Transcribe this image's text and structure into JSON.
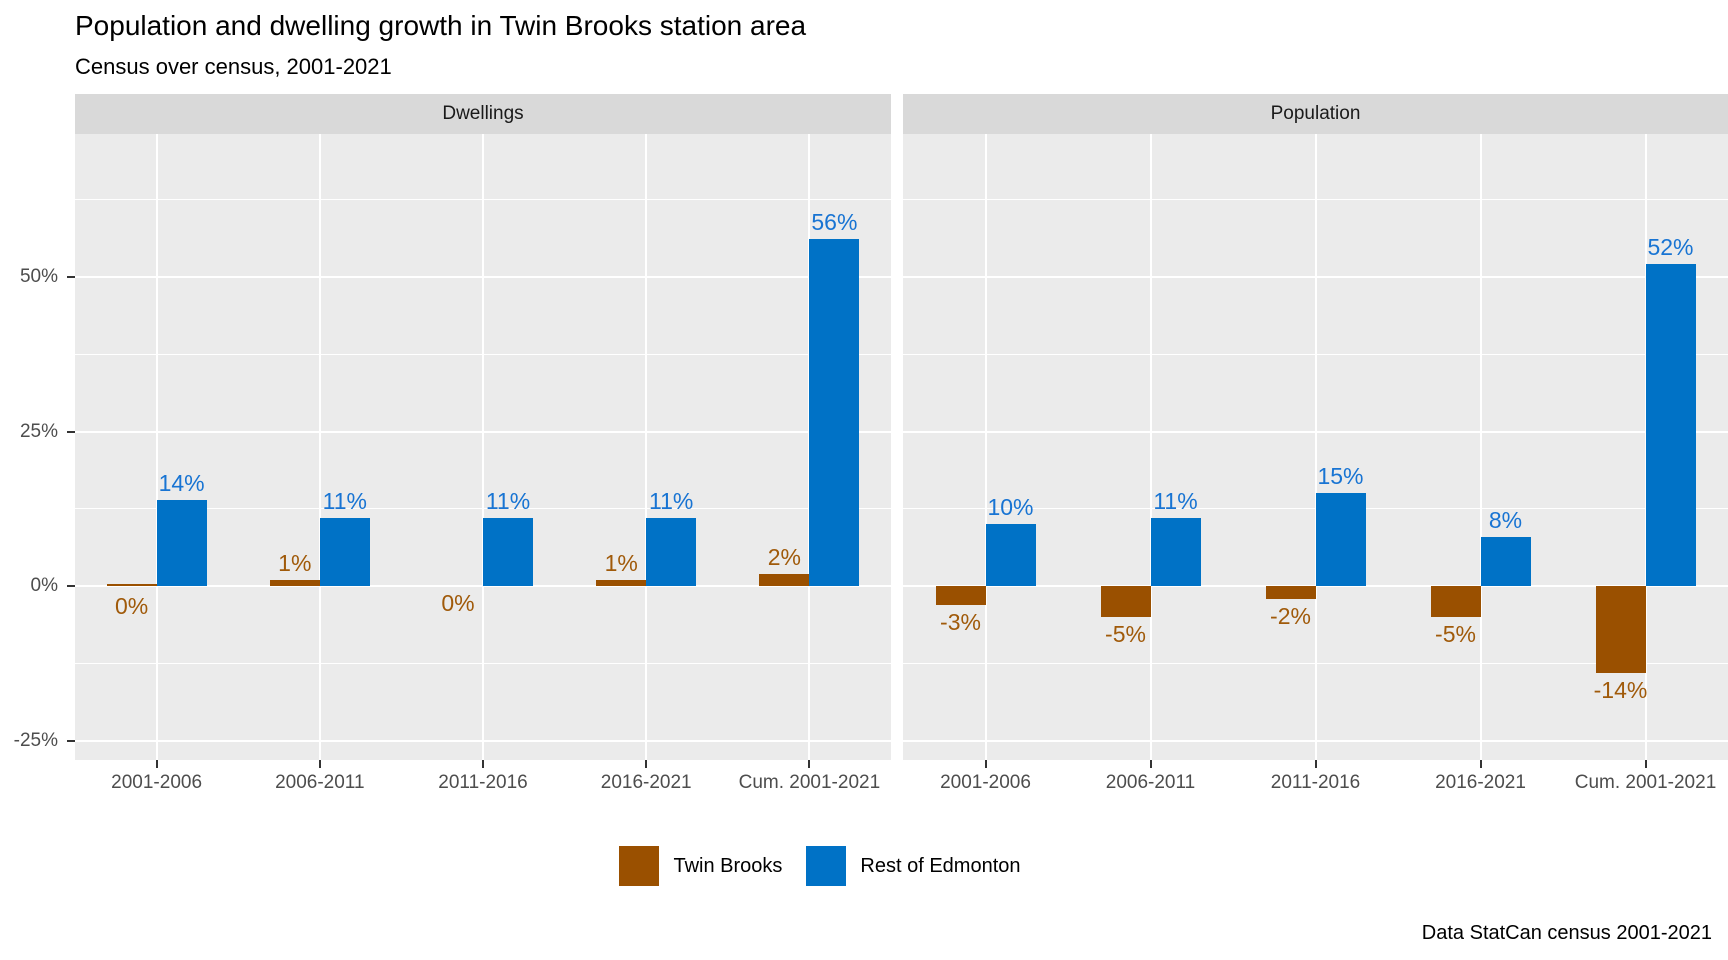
{
  "chart_data": {
    "type": "bar",
    "title": "Population and dwelling growth in Twin Brooks station area",
    "subtitle": "Census over census, 2001-2021",
    "caption": "Data StatCan census 2001-2021",
    "categories": [
      "2001-2006",
      "2006-2011",
      "2011-2016",
      "2016-2021",
      "Cum. 2001-2021"
    ],
    "facets": [
      {
        "label": "Dwellings",
        "series": [
          {
            "name": "Twin Brooks",
            "values": [
              0.4,
              1,
              0,
              1,
              2
            ],
            "labels": [
              "0%",
              "1%",
              "0%",
              "1%",
              "2%"
            ]
          },
          {
            "name": "Rest of Edmonton",
            "values": [
              14,
              11,
              11,
              11,
              56
            ],
            "labels": [
              "14%",
              "11%",
              "11%",
              "11%",
              "56%"
            ]
          }
        ]
      },
      {
        "label": "Population",
        "series": [
          {
            "name": "Twin Brooks",
            "values": [
              -3,
              -5,
              -2,
              -5,
              -14
            ],
            "labels": [
              "-3%",
              "-5%",
              "-2%",
              "-5%",
              "-14%"
            ]
          },
          {
            "name": "Rest of Edmonton",
            "values": [
              10,
              11,
              15,
              8,
              52
            ],
            "labels": [
              "10%",
              "11%",
              "15%",
              "8%",
              "52%"
            ]
          }
        ]
      }
    ],
    "y_axis": {
      "tick_labels": [
        "50%",
        "25%",
        "0%",
        "-25%"
      ],
      "tick_values": [
        50,
        25,
        0,
        -25
      ],
      "minor_values": [
        62.5,
        37.5,
        12.5,
        -12.5
      ],
      "ylim": [
        -28,
        73
      ],
      "grid": true
    },
    "legend": {
      "position": "bottom",
      "items": [
        {
          "label": "Twin Brooks",
          "color": "#9A5000"
        },
        {
          "label": "Rest of Edmonton",
          "color": "#0072C6"
        }
      ]
    }
  },
  "colors": {
    "twin_brooks_bar": "#9A5000",
    "twin_brooks_label": "#A05A0A",
    "rest_of_edmonton_bar": "#0072C6",
    "rest_of_edmonton_label": "#1874D3",
    "panel_background": "#EBEBEB",
    "strip_background": "#D9D9D9",
    "gridline": "#FFFFFF",
    "axis_text": "#4D4D4D",
    "tick_mark": "#333333"
  }
}
